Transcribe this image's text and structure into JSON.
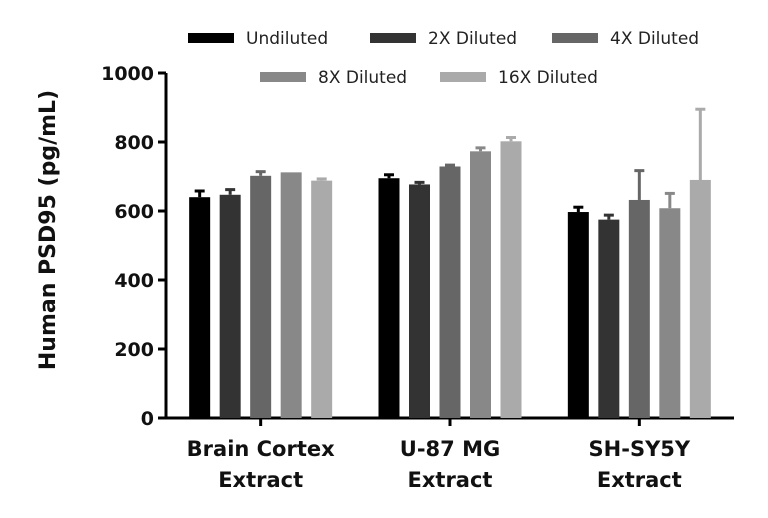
{
  "chart_data": {
    "type": "bar",
    "title": "",
    "xlabel": "",
    "ylabel": "Human PSD95 (pg/mL)",
    "ylim": [
      0,
      1000
    ],
    "yticks": [
      0,
      200,
      400,
      600,
      800,
      1000
    ],
    "grid": false,
    "legend_position": "top",
    "categories": [
      [
        "Brain Cortex",
        "Extract"
      ],
      [
        "U-87 MG",
        "Extract"
      ],
      [
        "SH-SY5Y",
        "Extract"
      ]
    ],
    "series": [
      {
        "name": "Undiluted",
        "color": "#000000",
        "values": [
          640,
          695,
          597
        ],
        "errors": [
          18,
          10,
          14
        ]
      },
      {
        "name": "2X Diluted",
        "color": "#333333",
        "values": [
          647,
          677,
          575
        ],
        "errors": [
          15,
          6,
          13
        ]
      },
      {
        "name": "4X Diluted",
        "color": "#666666",
        "values": [
          702,
          729,
          632
        ],
        "errors": [
          12,
          4,
          85
        ]
      },
      {
        "name": "8X Diluted",
        "color": "#888888",
        "values": [
          712,
          773,
          608
        ],
        "errors": [
          0,
          10,
          43
        ]
      },
      {
        "name": "16X Diluted",
        "color": "#aaaaaa",
        "values": [
          688,
          802,
          690
        ],
        "errors": [
          5,
          11,
          205
        ]
      }
    ]
  }
}
